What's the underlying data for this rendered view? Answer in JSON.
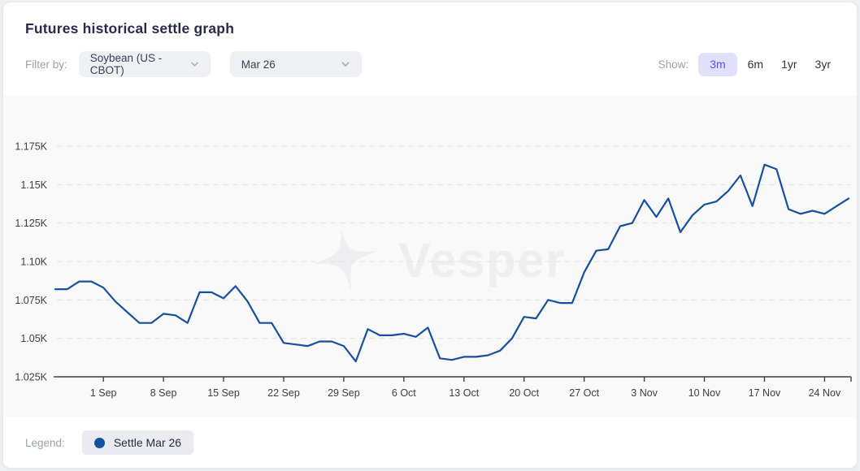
{
  "header": {
    "title": "Futures historical settle graph",
    "filter_label": "Filter by:",
    "commodity_dropdown": {
      "value": "Soybean (US - CBOT)"
    },
    "contract_dropdown": {
      "value": "Mar 26"
    },
    "show_label": "Show:",
    "ranges": [
      {
        "label": "3m",
        "selected": true
      },
      {
        "label": "6m",
        "selected": false
      },
      {
        "label": "1yr",
        "selected": false
      },
      {
        "label": "3yr",
        "selected": false
      }
    ]
  },
  "watermark": {
    "text": "Vesper"
  },
  "legend": {
    "label": "Legend:",
    "series_label": "Settle Mar 26",
    "series_color": "#17509f"
  },
  "colors": {
    "accent_chip_bg": "#e0e1f8",
    "accent_chip_text": "#5458d3",
    "series_line": "#17509f",
    "chart_background": "#f9f9fa",
    "grid_line": "#e3e3e3",
    "axis": "#3e4145",
    "title_text": "#262c49",
    "muted_label": "#9ba1ae"
  },
  "chart_data": {
    "type": "line",
    "title": "Futures historical settle graph",
    "xlabel": "",
    "ylabel": "",
    "grid": "horizontal-dashed",
    "legend_position": "bottom-left",
    "ylim": [
      1025,
      1175
    ],
    "y_ticks": [
      1025,
      1050,
      1075,
      1100,
      1125,
      1150,
      1175
    ],
    "y_tick_labels": [
      "1.025K",
      "1.05K",
      "1.075K",
      "1.10K",
      "1.125K",
      "1.15K",
      "1.175K"
    ],
    "x_tick_labels": [
      "1 Sep",
      "8 Sep",
      "15 Sep",
      "22 Sep",
      "29 Sep",
      "6 Oct",
      "13 Oct",
      "20 Oct",
      "27 Oct",
      "3 Nov",
      "10 Nov",
      "17 Nov",
      "24 Nov"
    ],
    "series": [
      {
        "name": "Settle Mar 26",
        "color": "#17509f",
        "x": [
          "26 Aug",
          "27 Aug",
          "28 Aug",
          "29 Aug",
          "1 Sep",
          "2 Sep",
          "3 Sep",
          "4 Sep",
          "5 Sep",
          "8 Sep",
          "9 Sep",
          "10 Sep",
          "11 Sep",
          "12 Sep",
          "15 Sep",
          "16 Sep",
          "17 Sep",
          "18 Sep",
          "19 Sep",
          "22 Sep",
          "23 Sep",
          "24 Sep",
          "25 Sep",
          "26 Sep",
          "29 Sep",
          "30 Sep",
          "1 Oct",
          "2 Oct",
          "3 Oct",
          "6 Oct",
          "7 Oct",
          "8 Oct",
          "9 Oct",
          "10 Oct",
          "13 Oct",
          "14 Oct",
          "15 Oct",
          "16 Oct",
          "17 Oct",
          "20 Oct",
          "21 Oct",
          "22 Oct",
          "23 Oct",
          "24 Oct",
          "27 Oct",
          "28 Oct",
          "29 Oct",
          "30 Oct",
          "31 Oct",
          "3 Nov",
          "4 Nov",
          "5 Nov",
          "6 Nov",
          "7 Nov",
          "10 Nov",
          "11 Nov",
          "12 Nov",
          "13 Nov",
          "14 Nov",
          "17 Nov",
          "18 Nov",
          "19 Nov",
          "20 Nov",
          "21 Nov",
          "24 Nov",
          "25 Nov",
          "26 Nov"
        ],
        "values": [
          1082,
          1082,
          1087,
          1087,
          1083,
          1074,
          1067,
          1060,
          1060,
          1066,
          1065,
          1060,
          1080,
          1080,
          1076,
          1084,
          1074,
          1060,
          1060,
          1047,
          1046,
          1045,
          1048,
          1048,
          1045,
          1035,
          1056,
          1052,
          1052,
          1053,
          1051,
          1057,
          1037,
          1036,
          1038,
          1038,
          1039,
          1042,
          1050,
          1064,
          1063,
          1075,
          1073,
          1073,
          1093,
          1107,
          1108,
          1123,
          1125,
          1140,
          1129,
          1141,
          1119,
          1130,
          1137,
          1139,
          1146,
          1156,
          1136,
          1163,
          1160,
          1134,
          1131,
          1133,
          1131,
          1136,
          1141
        ]
      }
    ]
  }
}
